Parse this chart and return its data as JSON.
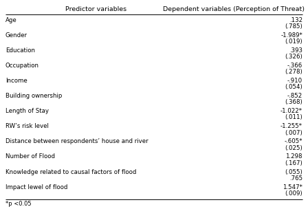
{
  "title_left": "Predictor variables",
  "title_right": "Dependent variables (Perception of Threat)",
  "rows": [
    {
      "predictor": "Age",
      "val1": ".132",
      "val2": "(.785)"
    },
    {
      "predictor": "Gender",
      "val1": "-1.989*",
      "val2": "(.019)"
    },
    {
      "predictor": "Education",
      "val1": ".393",
      "val2": "(.326)"
    },
    {
      "predictor": "Occupation",
      "val1": "-.366",
      "val2": "(.278)"
    },
    {
      "predictor": "Income",
      "val1": "-.910",
      "val2": "(.054)"
    },
    {
      "predictor": "Building ownership",
      "val1": "-.852",
      "val2": "(.368)"
    },
    {
      "predictor": "Length of Stay",
      "val1": "-1.022*",
      "val2": "(.011)"
    },
    {
      "predictor": "RW’s risk level",
      "val1": "-1.255*",
      "val2": "(.007)"
    },
    {
      "predictor": "Distance between respondents’ house and river",
      "val1": "-.605*",
      "val2": "(.025)"
    },
    {
      "predictor": "Number of Flood",
      "val1": "1.298",
      "val2": "(.167)"
    },
    {
      "predictor": "Knowledge related to causal factors of flood",
      "val1": "(.055)",
      "val2": ".765"
    },
    {
      "predictor": "Impact lewel of flood",
      "val1": "1.547*",
      "val2": "(.009)"
    }
  ],
  "footnote": "*p <0.05",
  "bg_color": "#ffffff",
  "text_color": "#000000",
  "header_fontsize": 6.8,
  "body_fontsize": 6.2,
  "footnote_fontsize": 6.0
}
